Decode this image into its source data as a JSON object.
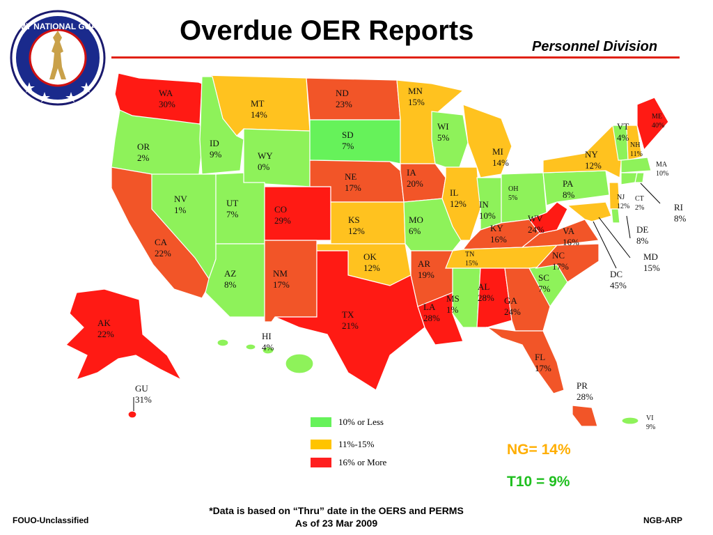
{
  "header": {
    "title": "Overdue OER Reports",
    "division": "Personnel Division",
    "logo_text": "ARMY NATIONAL GUARD"
  },
  "colors": {
    "green": "#66f25a",
    "orange": "#ffc400",
    "red": "#ff1f1f",
    "map_green": "#8ef25a",
    "map_orange": "#ffc21f",
    "map_orangered": "#f25528",
    "map_red": "#ff1a14",
    "rule": "#e02010"
  },
  "states": [
    {
      "abbr": "WA",
      "pct": "30%"
    },
    {
      "abbr": "OR",
      "pct": "2%"
    },
    {
      "abbr": "CA",
      "pct": "22%"
    },
    {
      "abbr": "AK",
      "pct": "22%"
    },
    {
      "abbr": "ID",
      "pct": "9%"
    },
    {
      "abbr": "NV",
      "pct": "1%"
    },
    {
      "abbr": "MT",
      "pct": "14%"
    },
    {
      "abbr": "WY",
      "pct": "0%"
    },
    {
      "abbr": "UT",
      "pct": "7%"
    },
    {
      "abbr": "AZ",
      "pct": "8%"
    },
    {
      "abbr": "CO",
      "pct": "29%"
    },
    {
      "abbr": "NM",
      "pct": "17%"
    },
    {
      "abbr": "ND",
      "pct": "23%"
    },
    {
      "abbr": "SD",
      "pct": "7%"
    },
    {
      "abbr": "NE",
      "pct": "17%"
    },
    {
      "abbr": "KS",
      "pct": "12%"
    },
    {
      "abbr": "OK",
      "pct": "12%"
    },
    {
      "abbr": "TX",
      "pct": "21%"
    },
    {
      "abbr": "MN",
      "pct": "15%"
    },
    {
      "abbr": "IA",
      "pct": "20%"
    },
    {
      "abbr": "MO",
      "pct": "6%"
    },
    {
      "abbr": "AR",
      "pct": "19%"
    },
    {
      "abbr": "LA",
      "pct": "28%"
    },
    {
      "abbr": "WI",
      "pct": "5%"
    },
    {
      "abbr": "IL",
      "pct": "12%"
    },
    {
      "abbr": "MI",
      "pct": "14%"
    },
    {
      "abbr": "IN",
      "pct": "10%"
    },
    {
      "abbr": "OH",
      "pct": "5%"
    },
    {
      "abbr": "KY",
      "pct": "16%"
    },
    {
      "abbr": "TN",
      "pct": "15%"
    },
    {
      "abbr": "MS",
      "pct": "1%"
    },
    {
      "abbr": "AL",
      "pct": "28%"
    },
    {
      "abbr": "GA",
      "pct": "24%"
    },
    {
      "abbr": "FL",
      "pct": "17%"
    },
    {
      "abbr": "SC",
      "pct": "7%"
    },
    {
      "abbr": "NC",
      "pct": "17%"
    },
    {
      "abbr": "VA",
      "pct": "16%"
    },
    {
      "abbr": "WV",
      "pct": "24%"
    },
    {
      "abbr": "PA",
      "pct": "8%"
    },
    {
      "abbr": "NY",
      "pct": "12%"
    },
    {
      "abbr": "VT",
      "pct": "4%"
    },
    {
      "abbr": "NH",
      "pct": "11%"
    },
    {
      "abbr": "ME",
      "pct": "40%"
    },
    {
      "abbr": "MA",
      "pct": "10%"
    },
    {
      "abbr": "RI",
      "pct": "8%"
    },
    {
      "abbr": "CT",
      "pct": "2%"
    },
    {
      "abbr": "NJ",
      "pct": "12%"
    },
    {
      "abbr": "DE",
      "pct": "8%"
    },
    {
      "abbr": "MD",
      "pct": "15%"
    },
    {
      "abbr": "DC",
      "pct": "45%"
    },
    {
      "abbr": "HI",
      "pct": "4%"
    },
    {
      "abbr": "GU",
      "pct": "31%"
    },
    {
      "abbr": "PR",
      "pct": "28%"
    },
    {
      "abbr": "VI",
      "pct": "9%"
    }
  ],
  "legend": [
    {
      "label": "10% or Less",
      "color": "#66f25a"
    },
    {
      "label": "11%-15%",
      "color": "#ffc400"
    },
    {
      "label": "16% or More",
      "color": "#ff1f1f"
    }
  ],
  "summary": {
    "ng": "NG= 14%",
    "t10": "T10 = 9%"
  },
  "footer": {
    "left": "FOUO-Unclassified",
    "note_line1": "*Data is based on “Thru” date in the OERS and PERMS",
    "note_line2": "As of  23 Mar 2009",
    "right": "NGB-ARP"
  }
}
